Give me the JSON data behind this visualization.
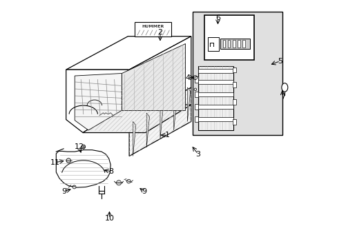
{
  "bg": "#ffffff",
  "lc": "#000000",
  "gray_fill": "#e8e8e8",
  "hatch_color": "#999999",
  "inset_bg": "#e0e0e0",
  "fig_w": 4.89,
  "fig_h": 3.6,
  "dpi": 100,
  "labels": {
    "1": [
      0.495,
      0.455,
      0.458,
      0.455
    ],
    "2": [
      0.465,
      0.87,
      0.465,
      0.828
    ],
    "3": [
      0.618,
      0.378,
      0.59,
      0.415
    ],
    "4": [
      0.578,
      0.688,
      0.612,
      0.688
    ],
    "5": [
      0.95,
      0.755,
      0.905,
      0.738
    ],
    "6": [
      0.698,
      0.93,
      0.698,
      0.895
    ],
    "7": [
      0.96,
      0.61,
      0.957,
      0.645
    ],
    "8": [
      0.268,
      0.308,
      0.23,
      0.315
    ],
    "9a": [
      0.078,
      0.228,
      0.113,
      0.238
    ],
    "9b": [
      0.4,
      0.228,
      0.375,
      0.245
    ],
    "10": [
      0.26,
      0.118,
      0.26,
      0.155
    ],
    "11": [
      0.042,
      0.345,
      0.085,
      0.352
    ],
    "12": [
      0.138,
      0.408,
      0.148,
      0.375
    ]
  }
}
